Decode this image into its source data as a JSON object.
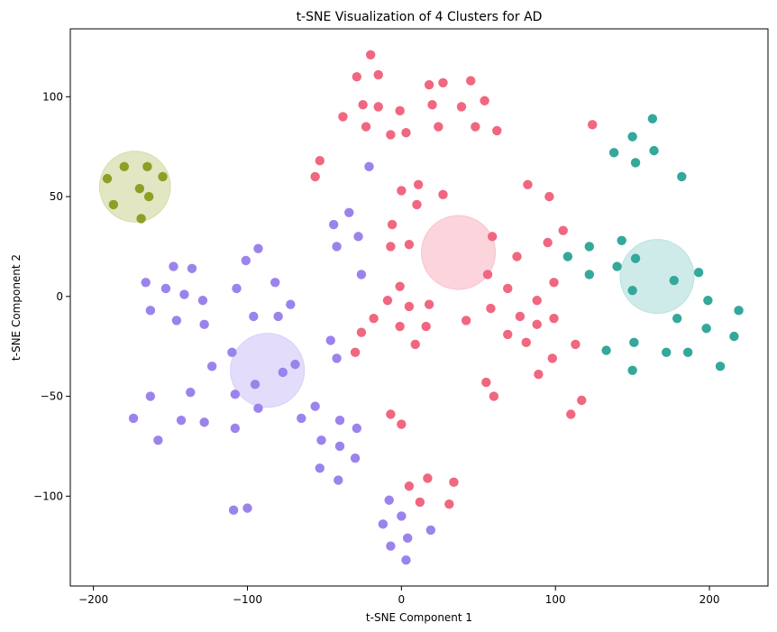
{
  "chart_data": {
    "type": "scatter",
    "title": "t-SNE Visualization of 4 Clusters for AD",
    "xlabel": "t-SNE Component 1",
    "ylabel": "t-SNE Component 2",
    "xlim": [
      -215,
      238
    ],
    "ylim": [
      -145,
      134
    ],
    "xticks": [
      -200,
      -100,
      0,
      100,
      200
    ],
    "yticks": [
      -100,
      -50,
      0,
      50,
      100
    ],
    "xtick_labels": [
      "−200",
      "−100",
      "0",
      "100",
      "200"
    ],
    "ytick_labels": [
      "−100",
      "−50",
      "0",
      "50",
      "100"
    ],
    "grid": false,
    "series": [
      {
        "color": "#f0677f",
        "points": [
          [
            -20,
            121
          ],
          [
            -29,
            110
          ],
          [
            -15,
            111
          ],
          [
            -38,
            90
          ],
          [
            -25,
            96
          ],
          [
            -15,
            95
          ],
          [
            -23,
            85
          ],
          [
            -7,
            81
          ],
          [
            -1,
            93
          ],
          [
            3,
            82
          ],
          [
            18,
            106
          ],
          [
            27,
            107
          ],
          [
            45,
            108
          ],
          [
            20,
            96
          ],
          [
            24,
            85
          ],
          [
            39,
            95
          ],
          [
            54,
            98
          ],
          [
            48,
            85
          ],
          [
            62,
            83
          ],
          [
            124,
            86
          ],
          [
            -53,
            68
          ],
          [
            -56,
            60
          ],
          [
            0,
            53
          ],
          [
            11,
            56
          ],
          [
            10,
            46
          ],
          [
            27,
            51
          ],
          [
            82,
            56
          ],
          [
            96,
            50
          ],
          [
            -6,
            36
          ],
          [
            -7,
            25
          ],
          [
            5,
            26
          ],
          [
            59,
            30
          ],
          [
            105,
            33
          ],
          [
            95,
            27
          ],
          [
            75,
            20
          ],
          [
            56,
            11
          ],
          [
            99,
            7
          ],
          [
            -1,
            5
          ],
          [
            -9,
            -2
          ],
          [
            18,
            -4
          ],
          [
            5,
            -5
          ],
          [
            -18,
            -11
          ],
          [
            -1,
            -15
          ],
          [
            16,
            -15
          ],
          [
            42,
            -12
          ],
          [
            58,
            -6
          ],
          [
            69,
            4
          ],
          [
            88,
            -2
          ],
          [
            99,
            -11
          ],
          [
            77,
            -10
          ],
          [
            88,
            -14
          ],
          [
            9,
            -24
          ],
          [
            -26,
            -18
          ],
          [
            -30,
            -28
          ],
          [
            69,
            -19
          ],
          [
            81,
            -23
          ],
          [
            98,
            -31
          ],
          [
            113,
            -24
          ],
          [
            89,
            -39
          ],
          [
            55,
            -43
          ],
          [
            60,
            -50
          ],
          [
            117,
            -52
          ],
          [
            110,
            -59
          ],
          [
            -7,
            -59
          ],
          [
            0,
            -64
          ],
          [
            5,
            -95
          ],
          [
            17,
            -91
          ],
          [
            34,
            -93
          ],
          [
            12,
            -103
          ],
          [
            31,
            -104
          ]
        ]
      },
      {
        "color": "#9b83ec",
        "points": [
          [
            -21,
            65
          ],
          [
            -34,
            42
          ],
          [
            -44,
            36
          ],
          [
            -42,
            25
          ],
          [
            -28,
            30
          ],
          [
            -26,
            11
          ],
          [
            -101,
            18
          ],
          [
            -93,
            24
          ],
          [
            -82,
            7
          ],
          [
            -107,
            4
          ],
          [
            -72,
            -4
          ],
          [
            -80,
            -10
          ],
          [
            -96,
            -10
          ],
          [
            -166,
            7
          ],
          [
            -163,
            -7
          ],
          [
            -153,
            4
          ],
          [
            -148,
            15
          ],
          [
            -136,
            14
          ],
          [
            -141,
            1
          ],
          [
            -146,
            -12
          ],
          [
            -129,
            -2
          ],
          [
            -128,
            -14
          ],
          [
            -123,
            -35
          ],
          [
            -110,
            -28
          ],
          [
            -77,
            -38
          ],
          [
            -69,
            -34
          ],
          [
            -46,
            -22
          ],
          [
            -42,
            -31
          ],
          [
            -95,
            -44
          ],
          [
            -93,
            -56
          ],
          [
            -108,
            -49
          ],
          [
            -163,
            -50
          ],
          [
            -137,
            -48
          ],
          [
            -174,
            -61
          ],
          [
            -158,
            -72
          ],
          [
            -143,
            -62
          ],
          [
            -128,
            -63
          ],
          [
            -108,
            -66
          ],
          [
            -65,
            -61
          ],
          [
            -56,
            -55
          ],
          [
            -52,
            -72
          ],
          [
            -40,
            -75
          ],
          [
            -40,
            -62
          ],
          [
            -29,
            -66
          ],
          [
            -53,
            -86
          ],
          [
            -30,
            -81
          ],
          [
            -41,
            -92
          ],
          [
            -109,
            -107
          ],
          [
            -100,
            -106
          ],
          [
            -8,
            -102
          ],
          [
            0,
            -110
          ],
          [
            -12,
            -114
          ],
          [
            -7,
            -125
          ],
          [
            4,
            -121
          ],
          [
            3,
            -132
          ],
          [
            19,
            -117
          ]
        ]
      },
      {
        "color": "#33a89b",
        "points": [
          [
            163,
            89
          ],
          [
            150,
            80
          ],
          [
            164,
            73
          ],
          [
            138,
            72
          ],
          [
            152,
            67
          ],
          [
            182,
            60
          ],
          [
            108,
            20
          ],
          [
            122,
            25
          ],
          [
            143,
            28
          ],
          [
            140,
            15
          ],
          [
            152,
            19
          ],
          [
            122,
            11
          ],
          [
            150,
            3
          ],
          [
            177,
            8
          ],
          [
            193,
            12
          ],
          [
            199,
            -2
          ],
          [
            219,
            -7
          ],
          [
            179,
            -11
          ],
          [
            198,
            -16
          ],
          [
            216,
            -20
          ],
          [
            133,
            -27
          ],
          [
            151,
            -23
          ],
          [
            172,
            -28
          ],
          [
            186,
            -28
          ],
          [
            150,
            -37
          ],
          [
            207,
            -35
          ]
        ]
      },
      {
        "color": "#8f9e25",
        "points": [
          [
            -191,
            59
          ],
          [
            -180,
            65
          ],
          [
            -165,
            65
          ],
          [
            -155,
            60
          ],
          [
            -170,
            54
          ],
          [
            -187,
            46
          ],
          [
            -164,
            50
          ],
          [
            -169,
            39
          ]
        ]
      }
    ],
    "centroids": [
      {
        "color": "#f9c2cd",
        "x": 37,
        "y": 22,
        "r": 24
      },
      {
        "color": "#d7cff9",
        "x": -87,
        "y": -37,
        "r": 24
      },
      {
        "color": "#b9e3df",
        "x": 166,
        "y": 10,
        "r": 24
      },
      {
        "color": "#d5dca9",
        "x": -173,
        "y": 55,
        "r": 23
      }
    ]
  }
}
